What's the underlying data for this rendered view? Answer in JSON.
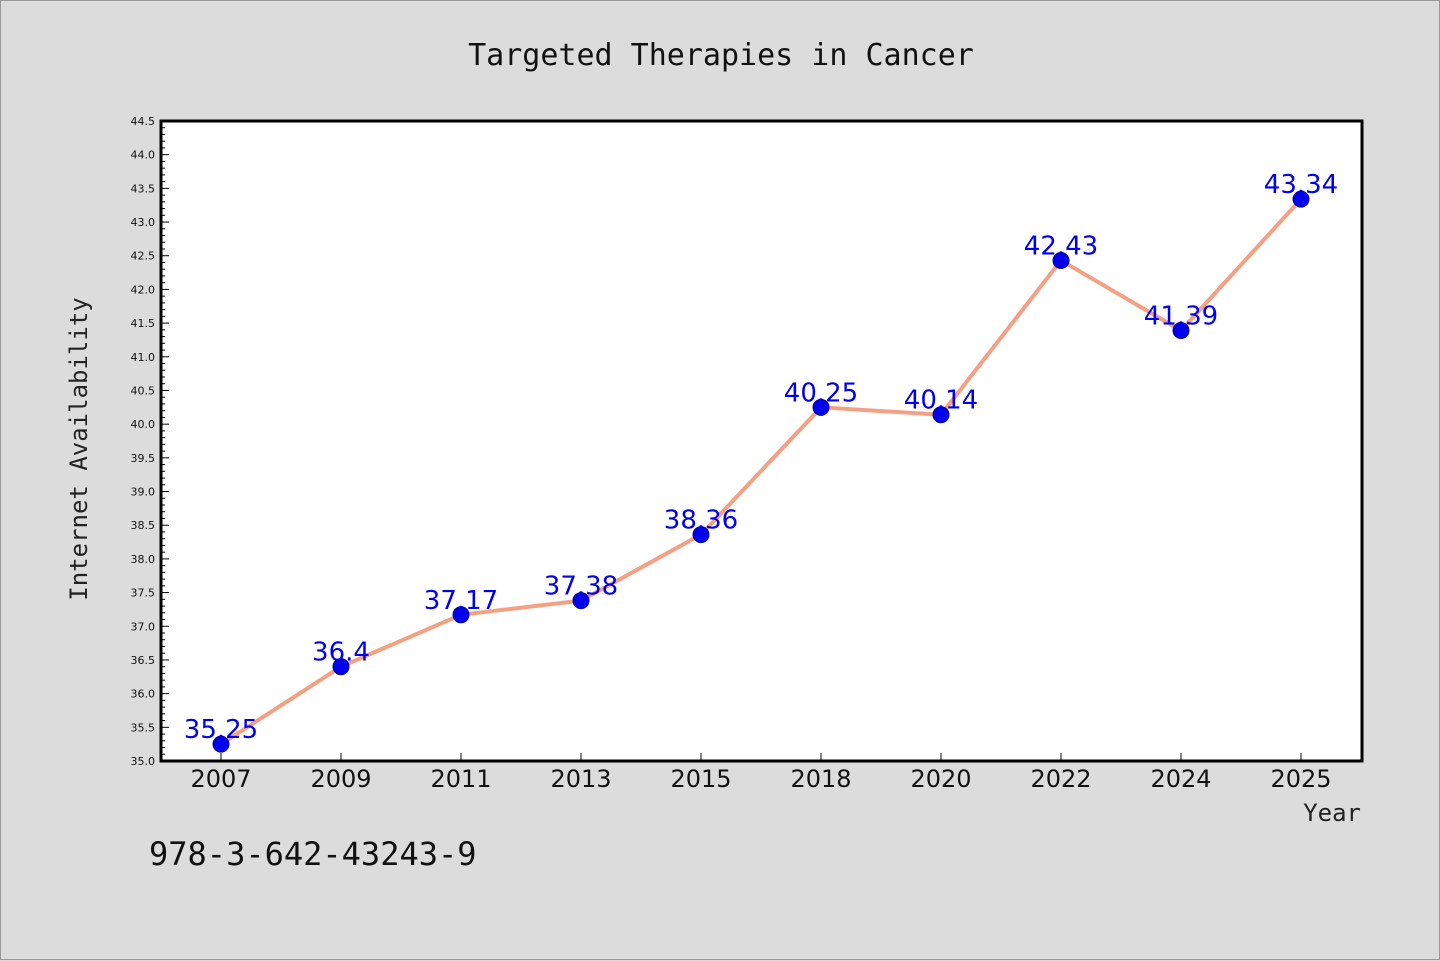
{
  "chart_data": {
    "type": "line",
    "title": "Targeted Therapies in Cancer",
    "xlabel": "Year",
    "ylabel": "Internet Availability",
    "categories": [
      "2007",
      "2009",
      "2011",
      "2013",
      "2015",
      "2018",
      "2020",
      "2022",
      "2024",
      "2025"
    ],
    "values": [
      35.25,
      36.4,
      37.17,
      37.38,
      38.36,
      40.25,
      40.14,
      42.43,
      41.39,
      43.34
    ],
    "data_labels": [
      "35.25",
      "36.4",
      "37.17",
      "37.38",
      "38.36",
      "40.25",
      "40.14",
      "42.43",
      "41.39",
      "43.34"
    ],
    "ylim": [
      35.0,
      44.5
    ],
    "y_ticks": [
      "35.0",
      "35.5",
      "36.0",
      "36.5",
      "37.0",
      "37.5",
      "38.0",
      "38.5",
      "39.0",
      "39.5",
      "40.0",
      "40.5",
      "41.0",
      "41.5",
      "42.0",
      "42.5",
      "43.0",
      "43.5",
      "44.0",
      "44.5"
    ],
    "grid": false,
    "legend": "none",
    "line_color": "#f4a082",
    "marker_color": "#0000ee",
    "label_color": "#0000ee"
  },
  "annotation": "978-3-642-43243-9"
}
